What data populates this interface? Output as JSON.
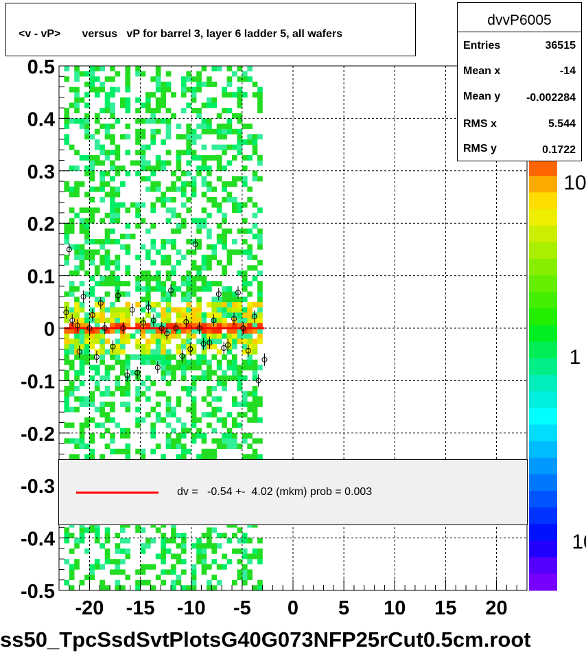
{
  "title": "<v - vP>       versus   vP for barrel 3, layer 6 ladder 5, all wafers",
  "footer": "ss50_TpcSsdSvtPlotsG40G073NFP25rCut0.5cm.root",
  "stats": {
    "name": "dvvP6005",
    "rows": [
      {
        "label": "Entries",
        "value": "36515"
      },
      {
        "label": "Mean x",
        "value": "-14"
      },
      {
        "label": "Mean y",
        "value": "-0.002284"
      },
      {
        "label": "RMS x",
        "value": "5.544"
      },
      {
        "label": "RMS y",
        "value": "0.1722"
      }
    ]
  },
  "legend": {
    "fit_text": "dv =   -0.54 +-  4.02 (mkm) prob = 0.003",
    "line_color": "#ff0000"
  },
  "chart_data": {
    "type": "heatmap",
    "xlim": [
      -23,
      23
    ],
    "ylim": [
      -0.5,
      0.5
    ],
    "x_ticks": [
      "-20",
      "-15",
      "-10",
      "-5",
      "0",
      "5",
      "10",
      "15",
      "20"
    ],
    "y_ticks": [
      "-0.5",
      "-0.4",
      "-0.3",
      "-0.2",
      "-0.1",
      "0",
      "0.1",
      "0.2",
      "0.3",
      "0.4",
      "0.5"
    ],
    "z_ticks": [
      "10",
      "1",
      "10"
    ],
    "grid": true,
    "fill_x_range": [
      -22.5,
      -3
    ],
    "fit_line": {
      "x": [
        -22.5,
        -2.8
      ],
      "y": [
        0.0,
        0.0
      ],
      "color": "#ff0000"
    },
    "profile_points": [
      {
        "x": -22.3,
        "y": 0.03
      },
      {
        "x": -22.0,
        "y": 0.15
      },
      {
        "x": -21.7,
        "y": 0.015
      },
      {
        "x": -21.2,
        "y": 0.005
      },
      {
        "x": -21.0,
        "y": -0.045
      },
      {
        "x": -20.6,
        "y": 0.06
      },
      {
        "x": -20.0,
        "y": 0.0
      },
      {
        "x": -19.7,
        "y": 0.025
      },
      {
        "x": -19.3,
        "y": -0.055
      },
      {
        "x": -18.9,
        "y": 0.048
      },
      {
        "x": -18.5,
        "y": 0.0
      },
      {
        "x": -17.7,
        "y": -0.035
      },
      {
        "x": -17.2,
        "y": 0.062
      },
      {
        "x": -16.7,
        "y": 0.0
      },
      {
        "x": -16.3,
        "y": -0.09
      },
      {
        "x": -15.8,
        "y": 0.035
      },
      {
        "x": -15.3,
        "y": -0.085
      },
      {
        "x": -14.7,
        "y": 0.01
      },
      {
        "x": -14.2,
        "y": 0.04
      },
      {
        "x": -13.7,
        "y": 0.015
      },
      {
        "x": -13.3,
        "y": -0.075
      },
      {
        "x": -12.9,
        "y": 0.0
      },
      {
        "x": -12.4,
        "y": -0.01
      },
      {
        "x": -12.0,
        "y": 0.072
      },
      {
        "x": -11.5,
        "y": 0.0
      },
      {
        "x": -10.9,
        "y": -0.053
      },
      {
        "x": -10.5,
        "y": 0.012
      },
      {
        "x": -10.1,
        "y": -0.04
      },
      {
        "x": -9.6,
        "y": 0.16
      },
      {
        "x": -9.2,
        "y": 0.0
      },
      {
        "x": -8.8,
        "y": -0.03
      },
      {
        "x": -8.2,
        "y": -0.028
      },
      {
        "x": -7.8,
        "y": 0.015
      },
      {
        "x": -7.3,
        "y": 0.065
      },
      {
        "x": -6.8,
        "y": -0.038
      },
      {
        "x": -6.4,
        "y": -0.032
      },
      {
        "x": -5.8,
        "y": 0.018
      },
      {
        "x": -5.4,
        "y": 0.068
      },
      {
        "x": -4.9,
        "y": 0.0
      },
      {
        "x": -4.4,
        "y": -0.043
      },
      {
        "x": -3.8,
        "y": 0.022
      },
      {
        "x": -3.4,
        "y": -0.1
      },
      {
        "x": -2.8,
        "y": -0.06
      }
    ]
  }
}
